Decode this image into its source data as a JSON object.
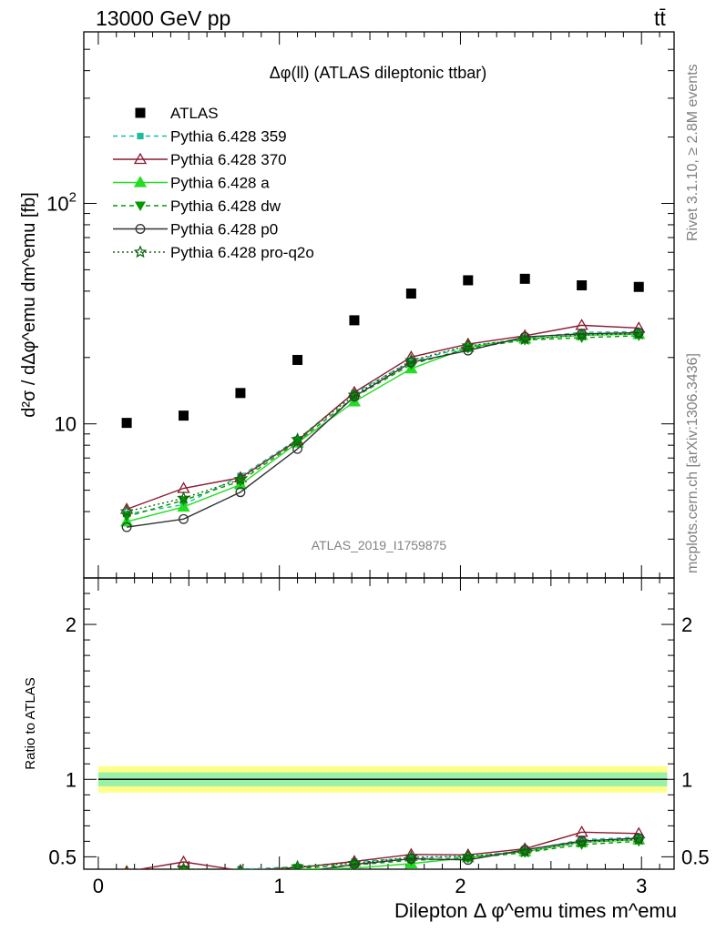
{
  "header": {
    "left": "13000 GeV pp",
    "right": "tt̄"
  },
  "side_labels": {
    "rivet": "Rivet 3.1.10, ≥ 2.8M events",
    "mcplots": "mcplots.cern.ch [arXiv:1306.3436]"
  },
  "analysis_id": "ATLAS_2019_I1759875",
  "chart_data": [
    {
      "type": "scatter",
      "panel": "main",
      "title": "Δφ(ll) (ATLAS dileptonic ttbar)",
      "ylabel": "d²σ / dΔφ^emu dm^emu [fb]",
      "yscale": "log",
      "xlim": [
        -0.08,
        3.18
      ],
      "ylim": [
        2.0,
        600
      ],
      "x": [
        0.157,
        0.471,
        0.785,
        1.1,
        1.414,
        1.728,
        2.042,
        2.356,
        2.67,
        2.985
      ],
      "y_tick_labels": [
        "10",
        "10²"
      ],
      "series": [
        {
          "name": "ATLAS",
          "color": "#000000",
          "marker": "square",
          "line": "none",
          "values": [
            10.1,
            10.9,
            13.8,
            19.5,
            29.5,
            39.0,
            44.8,
            45.5,
            42.5,
            41.8
          ]
        },
        {
          "name": "Pythia 6.428 359",
          "color": "#1abc9c",
          "marker": "square-small",
          "line": "dashed",
          "values": [
            3.9,
            4.3,
            5.8,
            8.5,
            13.8,
            19.2,
            22.4,
            24.5,
            26.0,
            26.2
          ]
        },
        {
          "name": "Pythia 6.428 370",
          "color": "#8b1a2e",
          "marker": "triangle-open",
          "line": "solid",
          "values": [
            4.1,
            5.1,
            5.7,
            8.4,
            13.9,
            20.1,
            23.0,
            25.1,
            28.0,
            27.2
          ]
        },
        {
          "name": "Pythia 6.428 a",
          "color": "#22dd22",
          "marker": "triangle",
          "line": "solid",
          "values": [
            3.6,
            4.2,
            5.3,
            8.2,
            12.6,
            17.8,
            22.2,
            24.3,
            25.2,
            25.5
          ]
        },
        {
          "name": "Pythia 6.428 dw",
          "color": "#009900",
          "marker": "triangle-down",
          "line": "dashed",
          "values": [
            3.8,
            4.5,
            5.5,
            8.3,
            13.2,
            18.6,
            22.0,
            24.0,
            24.6,
            25.1
          ]
        },
        {
          "name": "Pythia 6.428 p0",
          "color": "#333333",
          "marker": "circle-open",
          "line": "solid",
          "values": [
            3.4,
            3.7,
            4.9,
            7.7,
            13.3,
            19.0,
            21.5,
            24.8,
            25.6,
            25.9
          ]
        },
        {
          "name": "Pythia 6.428 pro-q2o",
          "color": "#116611",
          "marker": "star",
          "line": "dotted",
          "values": [
            4.0,
            4.6,
            5.6,
            8.5,
            13.5,
            19.4,
            22.6,
            24.2,
            25.3,
            25.6
          ]
        }
      ]
    },
    {
      "type": "line",
      "panel": "ratio",
      "ylabel": "Ratio to ATLAS",
      "xlabel": "Dilepton Δ φ^emu times m^emu",
      "xlim": [
        -0.08,
        3.18
      ],
      "ylim": [
        0.42,
        2.3
      ],
      "x_tick_labels": [
        "0",
        "1",
        "2",
        "3"
      ],
      "y_tick_labels": [
        "0.5",
        "1",
        "2"
      ],
      "x": [
        0.157,
        0.471,
        0.785,
        1.1,
        1.414,
        1.728,
        2.042,
        2.356,
        2.67,
        2.985
      ],
      "band": {
        "inner": 0.045,
        "outer": 0.085
      },
      "series": [
        {
          "name": "Pythia 6.428 359",
          "values": [
            0.385,
            0.395,
            0.42,
            0.435,
            0.468,
            0.492,
            0.5,
            0.54,
            0.61,
            0.627
          ]
        },
        {
          "name": "Pythia 6.428 370",
          "values": [
            0.405,
            0.467,
            0.412,
            0.43,
            0.47,
            0.515,
            0.513,
            0.552,
            0.659,
            0.65
          ]
        },
        {
          "name": "Pythia 6.428 a",
          "values": [
            0.355,
            0.385,
            0.383,
            0.42,
            0.427,
            0.456,
            0.495,
            0.534,
            0.593,
            0.61
          ]
        },
        {
          "name": "Pythia 6.428 dw",
          "values": [
            0.375,
            0.412,
            0.398,
            0.426,
            0.447,
            0.477,
            0.491,
            0.527,
            0.579,
            0.6
          ]
        },
        {
          "name": "Pythia 6.428 p0",
          "values": [
            0.337,
            0.34,
            0.355,
            0.395,
            0.451,
            0.487,
            0.48,
            0.545,
            0.602,
            0.62
          ]
        },
        {
          "name": "Pythia 6.428 pro-q2o",
          "values": [
            0.396,
            0.422,
            0.405,
            0.436,
            0.458,
            0.497,
            0.504,
            0.532,
            0.595,
            0.612
          ]
        }
      ]
    }
  ]
}
